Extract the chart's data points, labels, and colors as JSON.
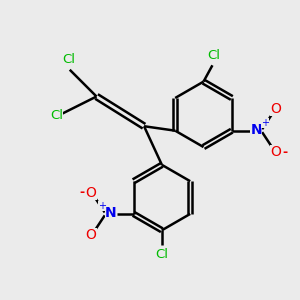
{
  "background_color": "#ebebeb",
  "bond_color": "#000000",
  "cl_color": "#00bb00",
  "n_color": "#0000ee",
  "o_color": "#ee0000",
  "bond_width": 1.8,
  "fig_size": [
    3.0,
    3.0
  ],
  "dpi": 100,
  "xlim": [
    0,
    10
  ],
  "ylim": [
    0,
    10
  ]
}
